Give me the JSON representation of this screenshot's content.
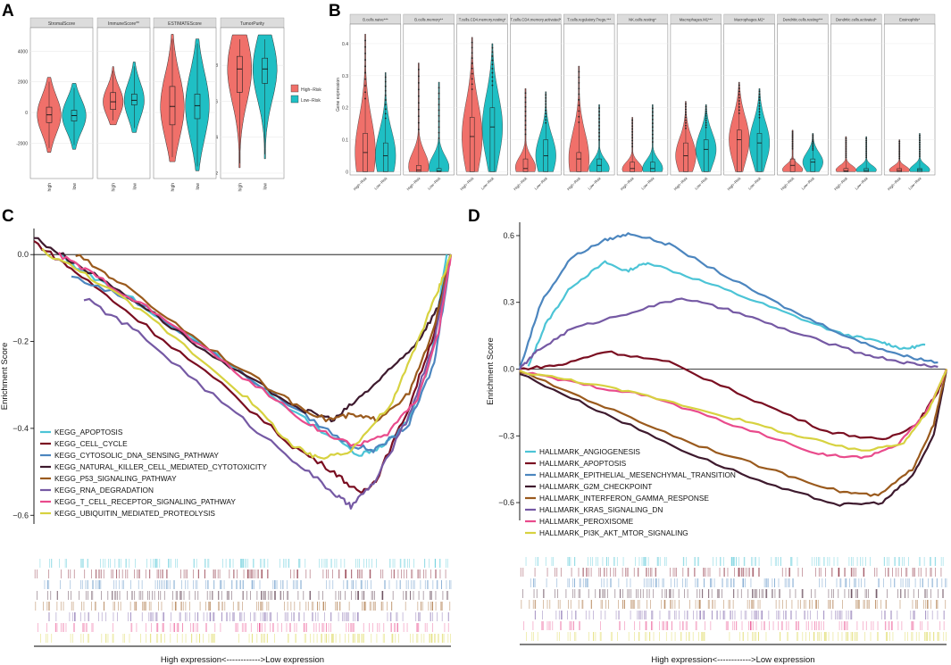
{
  "panel_labels": {
    "A": "A",
    "B": "B",
    "C": "C",
    "D": "D"
  },
  "colors": {
    "high": "#F0706A",
    "low": "#1FBFC4",
    "strip_bg": "#DCDCDC",
    "grid": "#EBEBEB"
  },
  "chart_data": [
    {
      "id": "A",
      "type": "violin",
      "facets": [
        {
          "title": "StromalScore",
          "categories": [
            "high",
            "low"
          ],
          "medians": [
            -150,
            -200
          ],
          "q1": [
            -650,
            -550
          ],
          "q3": [
            350,
            150
          ],
          "mins": [
            -2600,
            -2400
          ],
          "maxs": [
            2300,
            1900
          ]
        },
        {
          "title": "ImmuneScore**",
          "categories": [
            "high",
            "low"
          ],
          "medians": [
            700,
            800
          ],
          "q1": [
            200,
            500
          ],
          "q3": [
            1300,
            1200
          ],
          "mins": [
            -800,
            -1300
          ],
          "maxs": [
            3000,
            3300
          ]
        },
        {
          "title": "ESTIMATEScore",
          "categories": [
            "high",
            "low"
          ],
          "medians": [
            400,
            450
          ],
          "q1": [
            -800,
            -400
          ],
          "q3": [
            1700,
            1200
          ],
          "mins": [
            -3200,
            -3800
          ],
          "maxs": [
            5100,
            4800
          ]
        },
        {
          "title": "TumorPurity",
          "categories": [
            "high",
            "low"
          ],
          "medians": [
            0.78,
            0.78
          ],
          "q1": [
            0.65,
            0.7
          ],
          "q3": [
            0.85,
            0.84
          ],
          "mins": [
            0.23,
            0.28
          ],
          "maxs": [
            0.97,
            0.97
          ]
        }
      ],
      "shared_y_ticks": [
        -2000,
        0,
        2000,
        4000
      ],
      "shared_ylim": [
        -4300,
        5300
      ],
      "purity_y_ticks": [
        0.2,
        0.4,
        0.6,
        0.8
      ],
      "purity_ylim": [
        0.17,
        0.99
      ],
      "legend": [
        "High−Risk",
        "Low−Risk"
      ]
    },
    {
      "id": "B",
      "type": "violin",
      "ylabel": "Gene expression",
      "y_ticks": [
        0.0,
        0.1,
        0.2,
        0.3,
        0.4
      ],
      "ylim": [
        -0.01,
        0.45
      ],
      "categories": [
        "High−Risk",
        "Low−Risk"
      ],
      "facets": [
        {
          "title": "B.cells.naive***",
          "medians": [
            0.06,
            0.05
          ],
          "q3": [
            0.12,
            0.09
          ],
          "maxs": [
            0.43,
            0.31
          ]
        },
        {
          "title": "B.cells.memory**",
          "medians": [
            0.005,
            0.002
          ],
          "q3": [
            0.02,
            0.01
          ],
          "maxs": [
            0.34,
            0.28
          ]
        },
        {
          "title": "T.cells.CD4.memory.resting*",
          "medians": [
            0.11,
            0.14
          ],
          "q3": [
            0.17,
            0.2
          ],
          "maxs": [
            0.42,
            0.4
          ]
        },
        {
          "title": "T.cells.CD4.memory.activated*",
          "medians": [
            0.01,
            0.05
          ],
          "q3": [
            0.04,
            0.1
          ],
          "maxs": [
            0.26,
            0.25
          ]
        },
        {
          "title": "T.cells.regulatory.Tregs.***",
          "medians": [
            0.04,
            0.02
          ],
          "q3": [
            0.06,
            0.04
          ],
          "maxs": [
            0.33,
            0.21
          ]
        },
        {
          "title": "NK.cells.resting*",
          "medians": [
            0.01,
            0.01
          ],
          "q3": [
            0.03,
            0.03
          ],
          "maxs": [
            0.17,
            0.21
          ]
        },
        {
          "title": "Macrophages.M1***",
          "medians": [
            0.05,
            0.07
          ],
          "q3": [
            0.09,
            0.1
          ],
          "maxs": [
            0.22,
            0.21
          ]
        },
        {
          "title": "Macrophages.M2*",
          "medians": [
            0.1,
            0.09
          ],
          "q3": [
            0.13,
            0.12
          ],
          "maxs": [
            0.28,
            0.26
          ]
        },
        {
          "title": "Dendritic.cells.resting***",
          "medians": [
            0.02,
            0.03
          ],
          "q3": [
            0.04,
            0.04
          ],
          "maxs": [
            0.13,
            0.12
          ]
        },
        {
          "title": "Dendritic.cells.activated*",
          "medians": [
            0.003,
            0.004
          ],
          "q3": [
            0.01,
            0.01
          ],
          "maxs": [
            0.11,
            0.11
          ]
        },
        {
          "title": "Eosinophils*",
          "medians": [
            0.004,
            0.006
          ],
          "q3": [
            0.01,
            0.01
          ],
          "maxs": [
            0.1,
            0.12
          ]
        }
      ]
    },
    {
      "id": "C",
      "type": "line",
      "ylabel": "Enrichment Score",
      "xlabel": "High expression<------------>Low expression",
      "y_ticks": [
        0.0,
        -0.2,
        -0.4,
        -0.6
      ],
      "y_tick_labels": [
        "0.0",
        "−0.2",
        "−0.4",
        "−0.6"
      ],
      "ylim": [
        -0.62,
        0.06
      ],
      "x_range": [
        0,
        100
      ],
      "series": [
        {
          "name": "KEGG_APOPTOSIS",
          "color": "#4CC4D6",
          "points": [
            [
              6,
              0.0
            ],
            [
              12,
              -0.04
            ],
            [
              25,
              -0.11
            ],
            [
              45,
              -0.24
            ],
            [
              65,
              -0.38
            ],
            [
              78,
              -0.46
            ],
            [
              84,
              -0.44
            ],
            [
              90,
              -0.38
            ],
            [
              95,
              -0.25
            ],
            [
              99,
              0.0
            ]
          ]
        },
        {
          "name": "KEGG_CELL_CYCLE",
          "color": "#7A0E21",
          "points": [
            [
              0,
              0.03
            ],
            [
              10,
              -0.04
            ],
            [
              25,
              -0.15
            ],
            [
              45,
              -0.3
            ],
            [
              62,
              -0.44
            ],
            [
              72,
              -0.5
            ],
            [
              78,
              -0.55
            ],
            [
              82,
              -0.52
            ],
            [
              90,
              -0.35
            ],
            [
              96,
              -0.18
            ],
            [
              100,
              0.0
            ]
          ]
        },
        {
          "name": "KEGG_CYTOSOLIC_DNA_SENSING_PATHWAY",
          "color": "#4C86BF",
          "points": [
            [
              9,
              -0.05
            ],
            [
              25,
              -0.11
            ],
            [
              45,
              -0.24
            ],
            [
              65,
              -0.37
            ],
            [
              76,
              -0.44
            ],
            [
              82,
              -0.45
            ],
            [
              90,
              -0.39
            ],
            [
              96,
              -0.25
            ],
            [
              100,
              0.0
            ]
          ]
        },
        {
          "name": "KEGG_NATURAL_KILLER_CELL_MEDIATED_CYTOTOXICITY",
          "color": "#3E1A2E",
          "points": [
            [
              0,
              0.04
            ],
            [
              10,
              -0.02
            ],
            [
              25,
              -0.11
            ],
            [
              45,
              -0.25
            ],
            [
              65,
              -0.36
            ],
            [
              72,
              -0.38
            ],
            [
              78,
              -0.33
            ],
            [
              85,
              -0.27
            ],
            [
              92,
              -0.2
            ],
            [
              97,
              -0.12
            ],
            [
              100,
              0.0
            ]
          ]
        },
        {
          "name": "KEGG_P53_SIGNALING_PATHWAY",
          "color": "#9A5A1D",
          "points": [
            [
              10,
              0.0
            ],
            [
              20,
              -0.06
            ],
            [
              40,
              -0.2
            ],
            [
              60,
              -0.33
            ],
            [
              70,
              -0.38
            ],
            [
              76,
              -0.37
            ],
            [
              82,
              -0.38
            ],
            [
              90,
              -0.32
            ],
            [
              96,
              -0.17
            ],
            [
              100,
              0.0
            ]
          ]
        },
        {
          "name": "KEGG_RNA_DEGRADATION",
          "color": "#7559A4",
          "points": [
            [
              12,
              -0.1
            ],
            [
              25,
              -0.18
            ],
            [
              45,
              -0.34
            ],
            [
              62,
              -0.47
            ],
            [
              72,
              -0.55
            ],
            [
              76,
              -0.58
            ],
            [
              82,
              -0.52
            ],
            [
              90,
              -0.37
            ],
            [
              96,
              -0.2
            ],
            [
              100,
              0.0
            ]
          ]
        },
        {
          "name": "KEGG_T_CELL_RECEPTOR_SIGNALING_PATHWAY",
          "color": "#E94B8C",
          "points": [
            [
              6,
              0.0
            ],
            [
              15,
              -0.05
            ],
            [
              30,
              -0.14
            ],
            [
              50,
              -0.28
            ],
            [
              66,
              -0.39
            ],
            [
              76,
              -0.44
            ],
            [
              84,
              -0.42
            ],
            [
              92,
              -0.33
            ],
            [
              97,
              -0.18
            ],
            [
              100,
              0.0
            ]
          ]
        },
        {
          "name": "KEGG_UBIQUITIN_MEDIATED_PROTEOLYSIS",
          "color": "#D7D240",
          "points": [
            [
              2,
              0.01
            ],
            [
              15,
              -0.06
            ],
            [
              30,
              -0.16
            ],
            [
              50,
              -0.32
            ],
            [
              62,
              -0.44
            ],
            [
              68,
              -0.47
            ],
            [
              76,
              -0.45
            ],
            [
              86,
              -0.34
            ],
            [
              92,
              -0.2
            ],
            [
              97,
              -0.08
            ],
            [
              100,
              0.0
            ]
          ]
        }
      ]
    },
    {
      "id": "D",
      "type": "line",
      "ylabel": "Enrichment Score",
      "xlabel": "High expression<------------>Low expression",
      "y_ticks": [
        0.6,
        0.3,
        0.0,
        -0.3,
        -0.6
      ],
      "y_tick_labels": [
        "0.6",
        "0.3",
        "0.0",
        "−0.3",
        "−0.6"
      ],
      "ylim": [
        -0.68,
        0.66
      ],
      "x_range": [
        0,
        100
      ],
      "series": [
        {
          "name": "HALLMARK_ANGIOGENESIS",
          "color": "#4CC4D6",
          "points": [
            [
              2,
              0.01
            ],
            [
              6,
              0.2
            ],
            [
              12,
              0.37
            ],
            [
              20,
              0.48
            ],
            [
              25,
              0.44
            ],
            [
              30,
              0.48
            ],
            [
              45,
              0.38
            ],
            [
              60,
              0.27
            ],
            [
              75,
              0.16
            ],
            [
              85,
              0.12
            ],
            [
              90,
              0.09
            ],
            [
              95,
              0.11
            ]
          ]
        },
        {
          "name": "HALLMARK_APOPTOSIS",
          "color": "#7A0E21",
          "points": [
            [
              0,
              0.0
            ],
            [
              10,
              0.02
            ],
            [
              20,
              0.08
            ],
            [
              35,
              0.03
            ],
            [
              55,
              -0.14
            ],
            [
              72,
              -0.28
            ],
            [
              85,
              -0.32
            ],
            [
              93,
              -0.25
            ],
            [
              98,
              -0.1
            ],
            [
              100,
              0.0
            ]
          ]
        },
        {
          "name": "HALLMARK_EPITHELIAL_MESENCHYMAL_TRANSITION",
          "color": "#4C86BF",
          "points": [
            [
              0,
              0.0
            ],
            [
              5,
              0.3
            ],
            [
              12,
              0.5
            ],
            [
              20,
              0.58
            ],
            [
              26,
              0.61
            ],
            [
              35,
              0.56
            ],
            [
              50,
              0.4
            ],
            [
              65,
              0.25
            ],
            [
              80,
              0.12
            ],
            [
              90,
              0.06
            ],
            [
              98,
              0.03
            ]
          ]
        },
        {
          "name": "HALLMARK_G2M_CHECKPOINT",
          "color": "#3E1A2E",
          "points": [
            [
              0,
              -0.02
            ],
            [
              20,
              -0.2
            ],
            [
              40,
              -0.38
            ],
            [
              60,
              -0.53
            ],
            [
              75,
              -0.61
            ],
            [
              85,
              -0.6
            ],
            [
              92,
              -0.48
            ],
            [
              97,
              -0.3
            ],
            [
              100,
              0.0
            ]
          ]
        },
        {
          "name": "HALLMARK_INTERFERON_GAMMA_RESPONSE",
          "color": "#9A5A1D",
          "points": [
            [
              0,
              -0.01
            ],
            [
              20,
              -0.17
            ],
            [
              40,
              -0.33
            ],
            [
              60,
              -0.46
            ],
            [
              75,
              -0.55
            ],
            [
              84,
              -0.57
            ],
            [
              92,
              -0.45
            ],
            [
              97,
              -0.25
            ],
            [
              100,
              0.0
            ]
          ]
        },
        {
          "name": "HALLMARK_KRAS_SIGNALING_DN",
          "color": "#7559A4",
          "points": [
            [
              0,
              0.0
            ],
            [
              4,
              0.08
            ],
            [
              12,
              0.18
            ],
            [
              25,
              0.25
            ],
            [
              38,
              0.32
            ],
            [
              50,
              0.26
            ],
            [
              65,
              0.16
            ],
            [
              80,
              0.07
            ],
            [
              90,
              0.03
            ],
            [
              98,
              0.01
            ]
          ]
        },
        {
          "name": "HALLMARK_PEROXISOME",
          "color": "#E94B8C",
          "points": [
            [
              0,
              -0.01
            ],
            [
              15,
              -0.07
            ],
            [
              30,
              -0.12
            ],
            [
              50,
              -0.25
            ],
            [
              70,
              -0.38
            ],
            [
              80,
              -0.4
            ],
            [
              88,
              -0.35
            ],
            [
              95,
              -0.2
            ],
            [
              99,
              -0.05
            ],
            [
              100,
              0.0
            ]
          ]
        },
        {
          "name": "HALLMARK_PI3K_AKT_MTOR_SIGNALING",
          "color": "#D7D240",
          "points": [
            [
              0,
              -0.01
            ],
            [
              15,
              -0.06
            ],
            [
              30,
              -0.12
            ],
            [
              50,
              -0.22
            ],
            [
              65,
              -0.3
            ],
            [
              80,
              -0.37
            ],
            [
              90,
              -0.33
            ],
            [
              96,
              -0.18
            ],
            [
              100,
              0.0
            ]
          ]
        }
      ]
    }
  ]
}
